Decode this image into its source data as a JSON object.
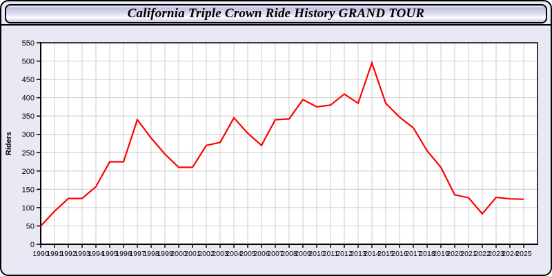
{
  "window": {
    "title": "California Triple Crown Ride History GRAND TOUR"
  },
  "colors": {
    "line": "#ff0000",
    "card_bg": "#e9e9f6",
    "plot_bg": "#ffffff",
    "grid": "#cccccc",
    "axis": "#000000",
    "text": "#000000"
  },
  "chart_data": {
    "type": "line",
    "title": "California Triple Crown Ride History GRAND TOUR",
    "xlabel": "",
    "ylabel": "Riders",
    "x": [
      1990,
      1991,
      1992,
      1993,
      1994,
      1995,
      1996,
      1997,
      1998,
      1999,
      2000,
      2001,
      2002,
      2003,
      2004,
      2005,
      2006,
      2007,
      2008,
      2009,
      2010,
      2011,
      2012,
      2013,
      2014,
      2015,
      2016,
      2017,
      2018,
      2019,
      2020,
      2021,
      2022,
      2023,
      2024,
      2025
    ],
    "series": [
      {
        "name": "Riders",
        "color": "#ff0000",
        "values": [
          50,
          90,
          125,
          125,
          157,
          225,
          225,
          340,
          290,
          246,
          210,
          210,
          270,
          278,
          345,
          303,
          270,
          340,
          342,
          395,
          375,
          380,
          410,
          385,
          495,
          385,
          347,
          318,
          255,
          210,
          135,
          127,
          83,
          128,
          124,
          123
        ]
      }
    ],
    "ylim": [
      0,
      550
    ],
    "ytick_step": 50,
    "xtick_step": 1,
    "grid": true,
    "legend": "none"
  }
}
